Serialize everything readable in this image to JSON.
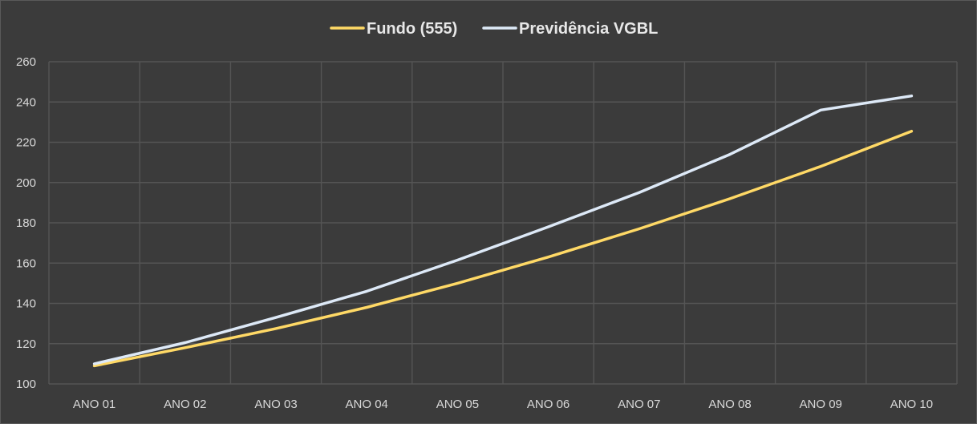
{
  "colors": {
    "background": "#3b3b3b",
    "grid": "#555555",
    "text": "#d9d9d9"
  },
  "chart_data": {
    "type": "line",
    "title": "",
    "xlabel": "",
    "ylabel": "",
    "categories": [
      "ANO 01",
      "ANO 02",
      "ANO 03",
      "ANO 04",
      "ANO 05",
      "ANO 06",
      "ANO 07",
      "ANO 08",
      "ANO 09",
      "ANO 10"
    ],
    "ylim": [
      100,
      260
    ],
    "yticks": [
      100,
      120,
      140,
      160,
      180,
      200,
      220,
      240,
      260
    ],
    "grid": true,
    "legend_position": "top-center",
    "series": [
      {
        "name": "Fundo (555)",
        "color": "#ffd966",
        "values": [
          109,
          118,
          127.5,
          138,
          150,
          163,
          177,
          192,
          208,
          225.5
        ]
      },
      {
        "name": "Previdência VGBL",
        "color": "#dde9f7",
        "values": [
          110,
          120.5,
          133,
          146,
          161.5,
          178,
          195,
          214,
          236,
          243
        ]
      }
    ]
  }
}
